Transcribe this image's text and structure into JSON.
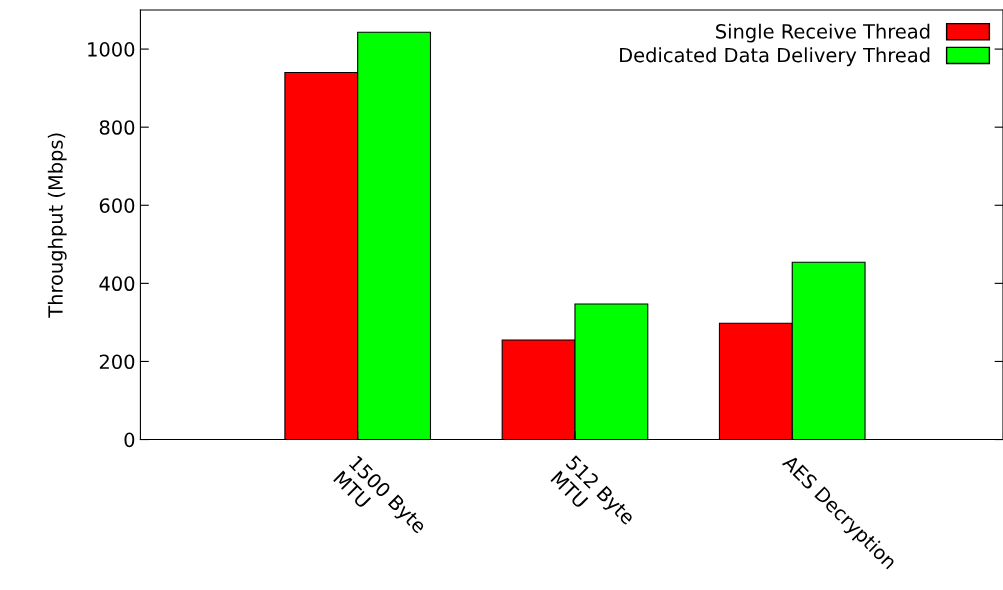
{
  "chart_data": {
    "type": "bar",
    "ylabel": "Throughput (Mbps)",
    "categories": [
      "1500 Byte\nMTU",
      "512 Byte\nMTU",
      "AES Decryption"
    ],
    "series": [
      {
        "name": "Single Receive Thread",
        "color": "#ff0000",
        "values": [
          940,
          255,
          298
        ]
      },
      {
        "name": "Dedicated Data Delivery Thread",
        "color": "#00ff00",
        "values": [
          1043,
          347,
          454
        ]
      }
    ],
    "ylim": [
      0,
      1100
    ],
    "yticks": [
      0,
      200,
      400,
      600,
      800,
      1000
    ],
    "grid": false,
    "legend": "top right"
  }
}
